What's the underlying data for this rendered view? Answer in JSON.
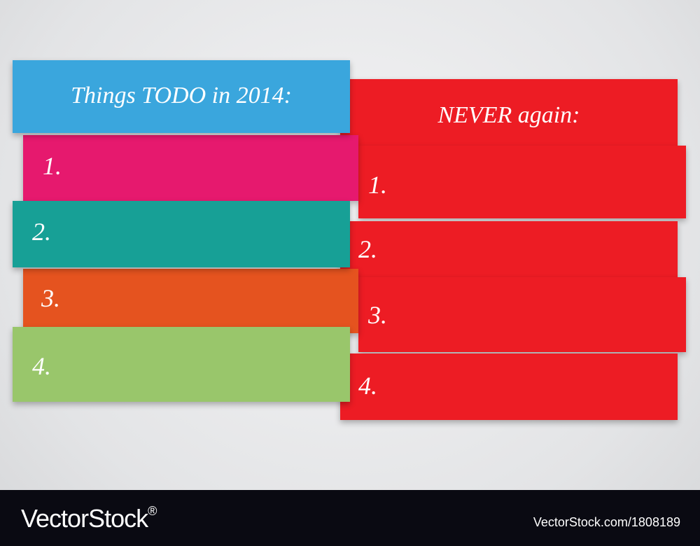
{
  "left": {
    "title": "Things TODO in 2014:",
    "items": [
      "1.",
      "2.",
      "3.",
      "4."
    ]
  },
  "right": {
    "title": "NEVER again:",
    "items": [
      "1.",
      "2.",
      "3.",
      "4."
    ]
  },
  "footer": {
    "brand": "VectorStock",
    "mark": "®",
    "url": "VectorStock.com/1808189"
  }
}
